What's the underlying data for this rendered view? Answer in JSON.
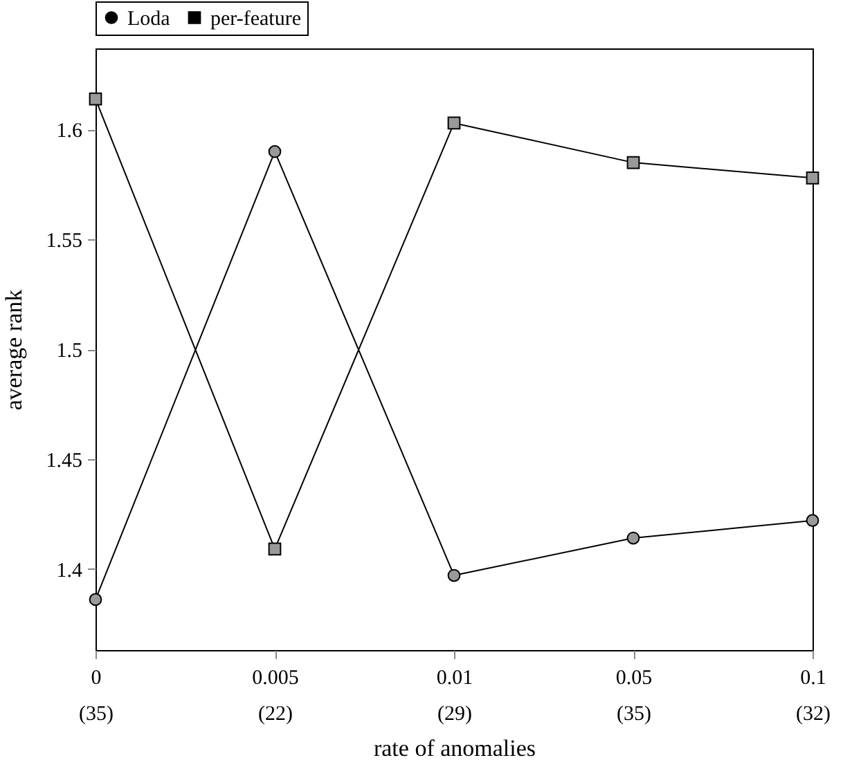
{
  "chart_data": {
    "type": "line",
    "xlabel": "rate of anomalies",
    "ylabel": "average rank",
    "categories": [
      "0\n(35)",
      "0.005\n(22)",
      "0.01\n(29)",
      "0.05\n(35)",
      "0.1\n(32)"
    ],
    "series": [
      {
        "name": "Loda",
        "color": "#000000",
        "marker": "circle",
        "values": [
          1.386,
          1.59,
          1.397,
          1.414,
          1.422
        ]
      },
      {
        "name": "per-feature",
        "color": "#000000",
        "marker": "square",
        "values": [
          1.614,
          1.409,
          1.603,
          1.585,
          1.578
        ]
      }
    ],
    "ylim": [
      1.363,
      1.637
    ],
    "yticks": [
      1.4,
      1.45,
      1.5,
      1.55,
      1.6
    ],
    "grid": false,
    "legend": "top",
    "line_style": "solid"
  }
}
